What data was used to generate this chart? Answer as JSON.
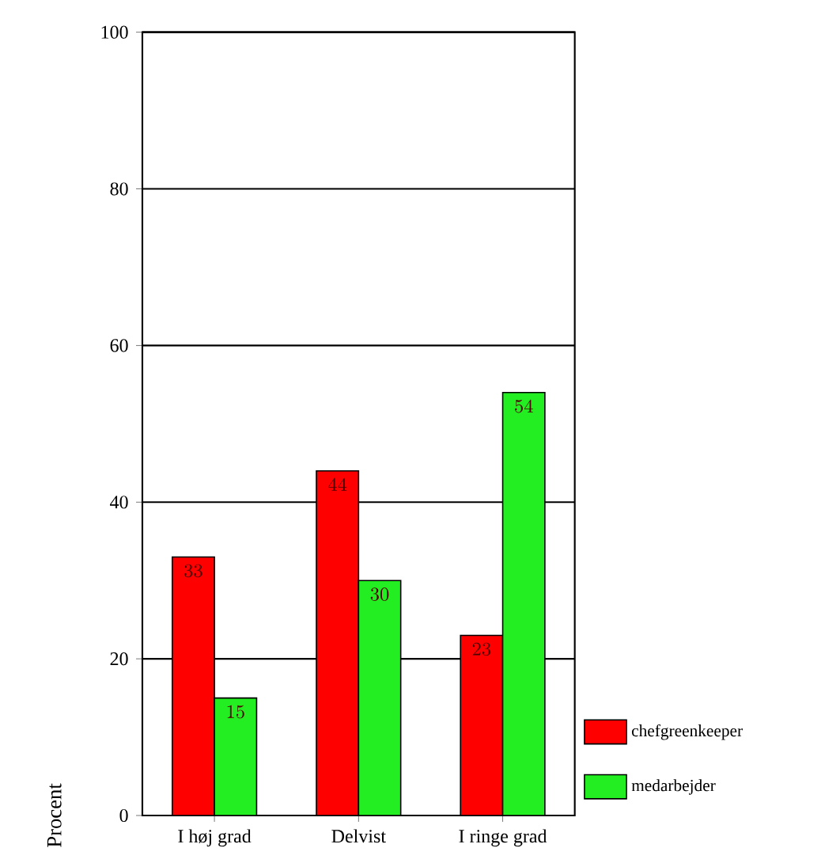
{
  "chart_data": {
    "type": "bar",
    "ylabel": "Procent",
    "categories": [
      "I høj grad",
      "Delvist",
      "I ringe grad"
    ],
    "series": [
      {
        "name": "chefgreenkeeper",
        "color": "#ff0000",
        "values": [
          33,
          44,
          23
        ]
      },
      {
        "name": "medarbejder",
        "color": "#22ee22",
        "values": [
          15,
          30,
          54
        ]
      }
    ],
    "ylim": [
      0,
      100
    ],
    "yticks": [
      0,
      20,
      40,
      60,
      80,
      100
    ],
    "grid": "y",
    "legend": "bottom right",
    "data_labels": true
  }
}
